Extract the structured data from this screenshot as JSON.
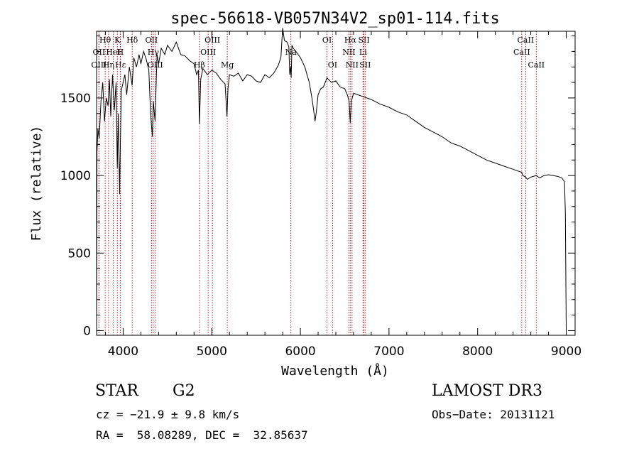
{
  "chart_data": {
    "type": "line",
    "title": "spec-56618-VB057N34V2_sp01-114.fits",
    "xlabel": "Wavelength (Å)",
    "ylabel": "Flux (relative)",
    "xlim": [
      3700,
      9100
    ],
    "ylim": [
      -30,
      1930
    ],
    "x_ticks": [
      4000,
      5000,
      6000,
      7000,
      8000,
      9000
    ],
    "x_tick_labels": [
      "4000",
      "5000",
      "6000",
      "7000",
      "8000",
      "9000"
    ],
    "y_ticks": [
      0,
      500,
      1000,
      1500
    ],
    "y_tick_labels": [
      "0",
      "500",
      "1000",
      "1500"
    ],
    "grid": false,
    "series": [
      {
        "name": "flux",
        "x": [
          3700,
          3705,
          3715,
          3730,
          3750,
          3770,
          3790,
          3810,
          3830,
          3845,
          3860,
          3880,
          3900,
          3920,
          3934,
          3945,
          3960,
          3968,
          3980,
          4000,
          4020,
          4040,
          4070,
          4101,
          4120,
          4150,
          4180,
          4200,
          4230,
          4260,
          4290,
          4310,
          4330,
          4340,
          4360,
          4383,
          4400,
          4430,
          4470,
          4500,
          4550,
          4600,
          4650,
          4700,
          4750,
          4800,
          4830,
          4850,
          4861,
          4875,
          4900,
          4950,
          5000,
          5050,
          5100,
          5150,
          5172,
          5183,
          5200,
          5250,
          5300,
          5350,
          5400,
          5450,
          5500,
          5550,
          5600,
          5650,
          5700,
          5750,
          5780,
          5800,
          5820,
          5850,
          5870,
          5880,
          5890,
          5896,
          5905,
          5920,
          5950,
          6000,
          6050,
          6100,
          6130,
          6150,
          6165,
          6180,
          6200,
          6230,
          6260,
          6300,
          6350,
          6400,
          6450,
          6500,
          6530,
          6550,
          6563,
          6575,
          6600,
          6650,
          6700,
          6800,
          6900,
          7000,
          7100,
          7200,
          7300,
          7400,
          7500,
          7600,
          7700,
          7800,
          7900,
          8000,
          8100,
          8200,
          8300,
          8400,
          8498,
          8510,
          8542,
          8560,
          8600,
          8662,
          8700,
          8750,
          8800,
          8850,
          8900,
          8950,
          8980,
          8990,
          9000
        ],
        "values": [
          0,
          1150,
          1300,
          1240,
          1480,
          1600,
          1350,
          1500,
          1450,
          1620,
          1380,
          1650,
          1420,
          1600,
          1050,
          1400,
          880,
          1200,
          1550,
          1600,
          1650,
          1520,
          1700,
          1580,
          1760,
          1700,
          1780,
          1720,
          1800,
          1750,
          1680,
          1400,
          1250,
          1480,
          1350,
          1780,
          1720,
          1820,
          1780,
          1840,
          1800,
          1860,
          1780,
          1770,
          1740,
          1720,
          1650,
          1680,
          1330,
          1620,
          1690,
          1650,
          1680,
          1660,
          1620,
          1590,
          1380,
          1560,
          1650,
          1640,
          1660,
          1610,
          1650,
          1640,
          1610,
          1600,
          1650,
          1630,
          1660,
          1710,
          1760,
          1950,
          1870,
          1860,
          1830,
          1650,
          1700,
          1630,
          1840,
          1820,
          1800,
          1760,
          1700,
          1600,
          1500,
          1420,
          1350,
          1410,
          1520,
          1560,
          1570,
          1630,
          1600,
          1610,
          1570,
          1560,
          1520,
          1480,
          1340,
          1480,
          1530,
          1520,
          1510,
          1490,
          1460,
          1440,
          1410,
          1390,
          1350,
          1310,
          1280,
          1250,
          1210,
          1190,
          1160,
          1130,
          1100,
          1080,
          1060,
          1040,
          1020,
          1000,
          990,
          975,
          990,
          1000,
          985,
          1000,
          1005,
          1000,
          995,
          985,
          960,
          760,
          0
        ]
      }
    ],
    "line_markers": [
      {
        "label": "Hθ",
        "x": 3797,
        "row": 0
      },
      {
        "label": "OII",
        "x": 3727,
        "row": 1
      },
      {
        "label": "OIII",
        "x": 3727,
        "row": 2
      },
      {
        "label": "Hη",
        "x": 3835,
        "row": 2
      },
      {
        "label": "HeI",
        "x": 3889,
        "row": 1
      },
      {
        "label": "K",
        "x": 3934,
        "row": 0
      },
      {
        "label": "Hε",
        "x": 3970,
        "row": 2
      },
      {
        "label": "H",
        "x": 3968,
        "row": 1
      },
      {
        "label": "Hδ",
        "x": 4102,
        "row": 0
      },
      {
        "label": "OII",
        "x": 4320,
        "row": 0
      },
      {
        "label": "Hγ",
        "x": 4340,
        "row": 1
      },
      {
        "label": "OIII",
        "x": 4363,
        "row": 2
      },
      {
        "label": "Hβ",
        "x": 4861,
        "row": 2
      },
      {
        "label": "OIII",
        "x": 4959,
        "row": 1
      },
      {
        "label": "OIII",
        "x": 5007,
        "row": 0
      },
      {
        "label": "Mg",
        "x": 5175,
        "row": 2
      },
      {
        "label": "Na",
        "x": 5893,
        "row": 1
      },
      {
        "label": "OI",
        "x": 6300,
        "row": 0
      },
      {
        "label": "OI",
        "x": 6363,
        "row": 2
      },
      {
        "label": "Hα",
        "x": 6563,
        "row": 0
      },
      {
        "label": "NII",
        "x": 6548,
        "row": 1
      },
      {
        "label": "NII",
        "x": 6583,
        "row": 2
      },
      {
        "label": "SII",
        "x": 6717,
        "row": 0
      },
      {
        "label": "Li",
        "x": 6707,
        "row": 1
      },
      {
        "label": "SII",
        "x": 6731,
        "row": 2
      },
      {
        "label": "CaII",
        "x": 8498,
        "row": 1
      },
      {
        "label": "CaII",
        "x": 8542,
        "row": 0
      },
      {
        "label": "CaII",
        "x": 8662,
        "row": 2
      }
    ]
  },
  "info": {
    "object_class": "STAR",
    "subclass": "G2",
    "survey": "LAMOST DR3",
    "redshift_text": "cz = −21.9 ± 9.8 km/s",
    "obs_date": "Obs−Date: 20131121",
    "coords": "RA =  58.08289, DEC =  32.85637"
  },
  "colors": {
    "spectrum": "#000000",
    "marker_line": "#b22222",
    "axes": "#000000"
  }
}
